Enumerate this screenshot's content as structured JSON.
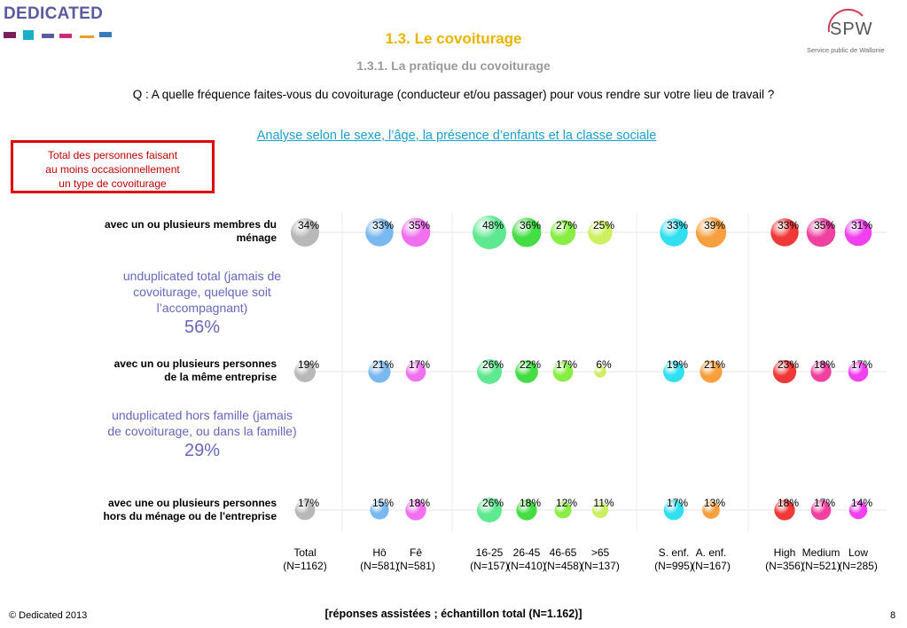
{
  "header": {
    "logo_text": "DEDICATED",
    "logo_bar_colors": [
      "#7a1f5c",
      "#1ab0c8",
      "#5a5aa0",
      "#cc2a7a",
      "#e8a020",
      "#3a7ab8"
    ],
    "spw_text": "SPW",
    "spw_subtitle": "Service public de Wallonie",
    "title": "1.3. Le covoiturage",
    "subtitle": "1.3.1. La pratique du covoiturage",
    "question": "Q : A quelle fréquence faites-vous du covoiturage (conducteur et/ou passager) pour vous rendre sur votre lieu de travail ?",
    "analysis": "Analyse selon le sexe, l’âge, la présence d’enfants et la classe sociale"
  },
  "total_box": {
    "line1": "Total des personnes faisant",
    "line2": "au moins occasionnellement",
    "line3": "un type de covoiturage"
  },
  "annotations": [
    {
      "line1": "unduplicated total (jamais de",
      "line2": "covoiturage, quelque soit",
      "line3": "l’accompagnant)",
      "value": "56%"
    },
    {
      "line1": "unduplicated hors famille (jamais",
      "line2": "de covoiturage, ou dans la famille)",
      "value": "29%"
    }
  ],
  "chart_data": {
    "type": "scatter",
    "rows": [
      {
        "label_line1": "avec un ou plusieurs membres du",
        "label_line2": "ménage",
        "values": [
          34,
          33,
          35,
          48,
          36,
          27,
          25,
          33,
          39,
          33,
          35,
          31
        ]
      },
      {
        "label_line1": "avec un ou plusieurs personnes",
        "label_line2": "de la même entreprise",
        "values": [
          19,
          21,
          17,
          26,
          22,
          17,
          6,
          19,
          21,
          23,
          18,
          17
        ]
      },
      {
        "label_line1": "avec une ou plusieurs personnes",
        "label_line2": "hors du ménage ou de l'entreprise",
        "values": [
          17,
          15,
          18,
          26,
          18,
          12,
          11,
          17,
          13,
          18,
          17,
          14
        ]
      }
    ],
    "columns": [
      {
        "name": "Total",
        "n": "(N=1162)",
        "color": "#b8b8b8"
      },
      {
        "name": "Hô",
        "n": "(N=581)",
        "color": "#7ab8f0"
      },
      {
        "name": "Fê",
        "n": "(N=581)",
        "color": "#f070f0"
      },
      {
        "name": "16-25",
        "n": "(N=157)",
        "color": "#5ee890"
      },
      {
        "name": "26-45",
        "n": "(N=410)",
        "color": "#44dd44"
      },
      {
        "name": "46-65",
        "n": "(N=458)",
        "color": "#88ee44"
      },
      {
        "name": ">65",
        "n": "(N=137)",
        "color": "#ccf060"
      },
      {
        "name": "S. enf.",
        "n": "(N=995)",
        "color": "#30e0f0"
      },
      {
        "name": "A. enf.",
        "n": "(N=167)",
        "color": "#f8a040"
      },
      {
        "name": "High",
        "n": "(N=356)",
        "color": "#f03838"
      },
      {
        "name": "Medium",
        "n": "(N=521)",
        "color": "#f040a0"
      },
      {
        "name": "Low",
        "n": "(N=285)",
        "color": "#f040f0"
      }
    ],
    "unit": "%"
  },
  "footer": {
    "copyright": "© Dedicated 2013",
    "note": "[réponses assistées ; échantillon total (N=1.162)]",
    "page_number": "8"
  }
}
